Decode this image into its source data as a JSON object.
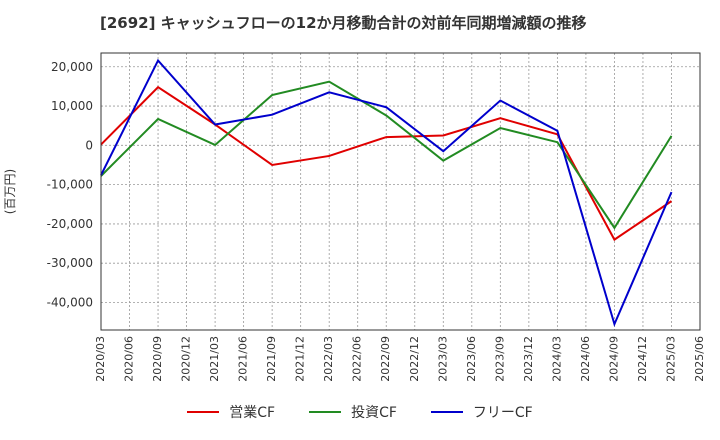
{
  "title": "[2692]  キャッシュフローの12か月移動合計の対前年同期増減額の推移",
  "colors": {
    "operating": "#e00000",
    "investing": "#228b22",
    "free": "#0000cc",
    "grid": "#999999",
    "axis": "#333333"
  },
  "chart_data": {
    "type": "line",
    "ylabel": "(百万円)",
    "ylim": [
      -47000,
      23500
    ],
    "yticks": [
      20000,
      10000,
      0,
      -10000,
      -20000,
      -30000,
      -40000
    ],
    "ytick_labels": [
      "20,000",
      "10,000",
      "0",
      "-10,000",
      "-20,000",
      "-30,000",
      "-40,000"
    ],
    "xticks": [
      "2020/03",
      "2020/06",
      "2020/09",
      "2020/12",
      "2021/03",
      "2021/06",
      "2021/09",
      "2021/12",
      "2022/03",
      "2022/06",
      "2022/09",
      "2022/12",
      "2023/03",
      "2023/06",
      "2023/09",
      "2023/12",
      "2024/03",
      "2024/06",
      "2024/09",
      "2024/12",
      "2025/03",
      "2025/06"
    ],
    "grid": true,
    "legend_position": "bottom",
    "series": [
      {
        "name": "営業CF",
        "color": "#e00000",
        "x": [
          "2020/03",
          "2020/09",
          "2021/03",
          "2021/09",
          "2022/03",
          "2022/09",
          "2023/03",
          "2023/09",
          "2024/03",
          "2024/09",
          "2025/03"
        ],
        "values": [
          200,
          14800,
          5300,
          -5000,
          -2700,
          2100,
          2500,
          6900,
          2800,
          -24000,
          -14200
        ]
      },
      {
        "name": "投資CF",
        "color": "#228b22",
        "x": [
          "2020/03",
          "2020/09",
          "2021/03",
          "2021/09",
          "2022/03",
          "2022/09",
          "2023/03",
          "2023/09",
          "2024/03",
          "2024/09",
          "2025/03"
        ],
        "values": [
          -7800,
          6700,
          100,
          12800,
          16200,
          7600,
          -3900,
          4400,
          800,
          -21000,
          2400
        ]
      },
      {
        "name": "フリーCF",
        "color": "#0000cc",
        "x": [
          "2020/03",
          "2020/09",
          "2021/03",
          "2021/09",
          "2022/03",
          "2022/09",
          "2023/03",
          "2023/09",
          "2024/03",
          "2024/09",
          "2025/03"
        ],
        "values": [
          -7600,
          21600,
          5300,
          7800,
          13500,
          9700,
          -1500,
          11400,
          3700,
          -45500,
          -11900
        ]
      }
    ]
  }
}
